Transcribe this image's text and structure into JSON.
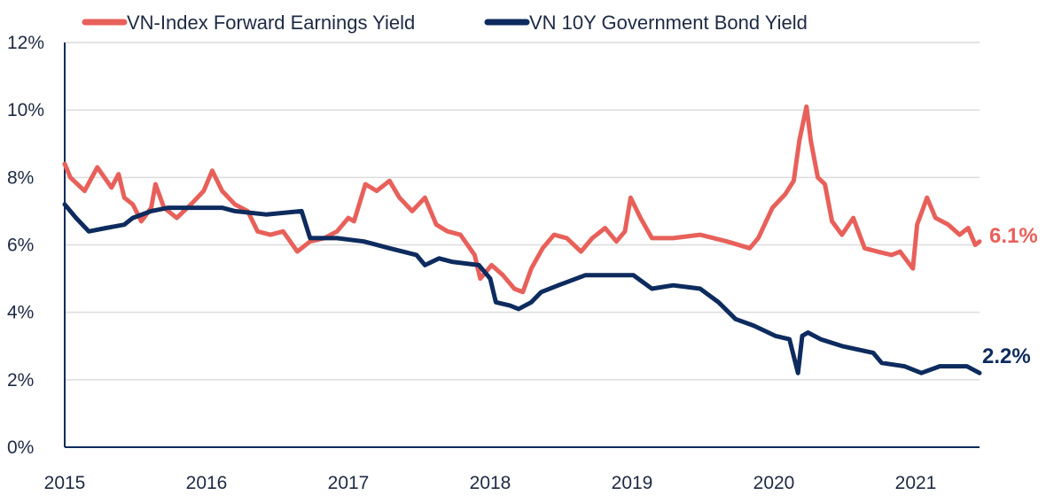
{
  "chart_data": {
    "type": "line",
    "title": "",
    "xlabel": "",
    "ylabel": "",
    "xlim": [
      2015,
      2021.5
    ],
    "ylim": [
      0,
      12
    ],
    "grid": true,
    "legend_position": "top",
    "x_ticks": [
      "2015",
      "2016",
      "2017",
      "2018",
      "2019",
      "2020",
      "2021"
    ],
    "x_tick_values": [
      2015,
      2016,
      2017,
      2018,
      2019,
      2020,
      2021
    ],
    "y_ticks": [
      "0%",
      "2%",
      "4%",
      "6%",
      "8%",
      "10%",
      "12%"
    ],
    "y_tick_values": [
      0,
      2,
      4,
      6,
      8,
      10,
      12
    ],
    "series": [
      {
        "name": "VN-Index Forward Earnings Yield",
        "color": "#e8605a",
        "end_label": "6.1%",
        "x": [
          2015.0,
          2015.04,
          2015.14,
          2015.23,
          2015.33,
          2015.38,
          2015.42,
          2015.48,
          2015.54,
          2015.61,
          2015.64,
          2015.7,
          2015.79,
          2015.89,
          2015.98,
          2016.04,
          2016.11,
          2016.2,
          2016.29,
          2016.36,
          2016.45,
          2016.54,
          2016.64,
          2016.73,
          2016.83,
          2016.92,
          2017.0,
          2017.04,
          2017.12,
          2017.2,
          2017.29,
          2017.36,
          2017.45,
          2017.54,
          2017.62,
          2017.7,
          2017.79,
          2017.89,
          2017.93,
          2018.01,
          2018.09,
          2018.17,
          2018.23,
          2018.29,
          2018.37,
          2018.45,
          2018.54,
          2018.64,
          2018.72,
          2018.81,
          2018.89,
          2018.95,
          2018.99,
          2019.06,
          2019.14,
          2019.29,
          2019.48,
          2019.67,
          2019.83,
          2019.89,
          2019.99,
          2020.08,
          2020.14,
          2020.18,
          2020.23,
          2020.26,
          2020.31,
          2020.36,
          2020.41,
          2020.48,
          2020.56,
          2020.64,
          2020.73,
          2020.83,
          2020.89,
          2020.98,
          2021.01,
          2021.08,
          2021.14,
          2021.23,
          2021.31,
          2021.37,
          2021.42,
          2021.45
        ],
        "y": [
          8.4,
          8.0,
          7.6,
          8.3,
          7.7,
          8.1,
          7.4,
          7.2,
          6.7,
          7.1,
          7.8,
          7.1,
          6.8,
          7.2,
          7.6,
          8.2,
          7.6,
          7.2,
          7.0,
          6.4,
          6.3,
          6.4,
          5.8,
          6.1,
          6.2,
          6.4,
          6.8,
          6.7,
          7.8,
          7.6,
          7.9,
          7.4,
          7.0,
          7.4,
          6.6,
          6.4,
          6.3,
          5.7,
          5.0,
          5.4,
          5.1,
          4.7,
          4.6,
          5.3,
          5.9,
          6.3,
          6.2,
          5.8,
          6.2,
          6.5,
          6.1,
          6.4,
          7.4,
          6.8,
          6.2,
          6.2,
          6.3,
          6.1,
          5.9,
          6.2,
          7.1,
          7.5,
          7.9,
          9.1,
          10.1,
          9.1,
          8.0,
          7.8,
          6.7,
          6.3,
          6.8,
          5.9,
          5.8,
          5.7,
          5.8,
          5.3,
          6.6,
          7.4,
          6.8,
          6.6,
          6.3,
          6.5,
          6.0,
          6.1
        ]
      },
      {
        "name": "VN 10Y Government Bond Yield",
        "color": "#0d2b5e",
        "end_label": "2.2%",
        "x": [
          2015.0,
          2015.08,
          2015.17,
          2015.29,
          2015.42,
          2015.48,
          2015.61,
          2015.73,
          2016.11,
          2016.2,
          2016.42,
          2016.67,
          2016.73,
          2016.92,
          2017.11,
          2017.29,
          2017.48,
          2017.54,
          2017.64,
          2017.73,
          2017.92,
          2018.0,
          2018.04,
          2018.14,
          2018.2,
          2018.29,
          2018.36,
          2018.48,
          2018.67,
          2019.01,
          2019.14,
          2019.29,
          2019.48,
          2019.61,
          2019.73,
          2019.86,
          2020.01,
          2020.11,
          2020.17,
          2020.2,
          2020.24,
          2020.33,
          2020.48,
          2020.7,
          2020.76,
          2020.92,
          2021.04,
          2021.17,
          2021.36,
          2021.45
        ],
        "y": [
          7.2,
          6.8,
          6.4,
          6.5,
          6.6,
          6.8,
          7.0,
          7.1,
          7.1,
          7.0,
          6.9,
          7.0,
          6.2,
          6.2,
          6.1,
          5.9,
          5.7,
          5.4,
          5.6,
          5.5,
          5.4,
          5.0,
          4.3,
          4.2,
          4.1,
          4.3,
          4.6,
          4.8,
          5.1,
          5.1,
          4.7,
          4.8,
          4.7,
          4.3,
          3.8,
          3.6,
          3.3,
          3.2,
          2.2,
          3.3,
          3.4,
          3.2,
          3.0,
          2.8,
          2.5,
          2.4,
          2.2,
          2.4,
          2.4,
          2.2
        ]
      }
    ]
  }
}
